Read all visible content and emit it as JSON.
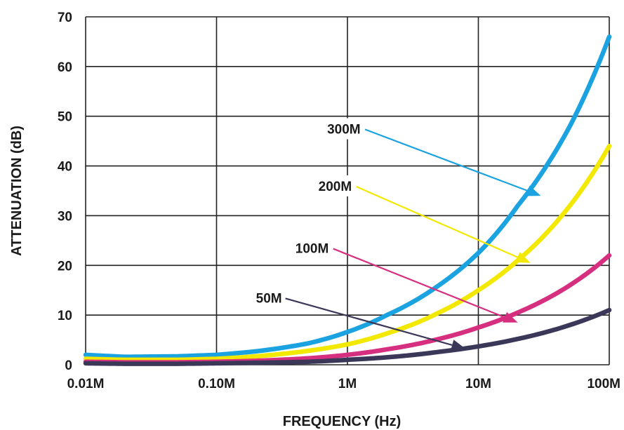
{
  "chart_data": {
    "type": "line",
    "title": "",
    "xlabel": "FREQUENCY (Hz)",
    "ylabel": "ATTENUATION (dB)",
    "xscale": "log",
    "xlim": [
      0.01,
      100
    ],
    "ylim": [
      0,
      70
    ],
    "x_unit": "MHz",
    "grid": true,
    "x_ticks": [
      {
        "value": 0.01,
        "label": "0.01M"
      },
      {
        "value": 0.1,
        "label": "0.10M"
      },
      {
        "value": 1,
        "label": "1M"
      },
      {
        "value": 10,
        "label": "10M"
      },
      {
        "value": 100,
        "label": "100M"
      }
    ],
    "y_ticks": [
      0,
      10,
      20,
      30,
      40,
      50,
      60,
      70
    ],
    "x": [
      0.01,
      0.02,
      0.05,
      0.1,
      0.2,
      0.5,
      1,
      2,
      5,
      10,
      20,
      50,
      100
    ],
    "series": [
      {
        "name": "300M",
        "color": "#1aa3e0",
        "values": [
          2.0,
          1.6,
          1.7,
          2.0,
          2.7,
          4.3,
          6.6,
          10.0,
          16.0,
          22.5,
          32.0,
          48.0,
          66.0
        ]
      },
      {
        "name": "200M",
        "color": "#f2e800",
        "values": [
          1.2,
          1.0,
          1.0,
          1.2,
          1.7,
          2.8,
          4.1,
          6.3,
          10.5,
          15.0,
          21.0,
          32.0,
          44.0
        ]
      },
      {
        "name": "100M",
        "color": "#d62f7f",
        "values": [
          0.6,
          0.5,
          0.5,
          0.6,
          0.8,
          1.3,
          2.0,
          3.1,
          5.2,
          7.5,
          10.5,
          16.0,
          22.0
        ]
      },
      {
        "name": "50M",
        "color": "#3a3758",
        "values": [
          0.3,
          0.2,
          0.2,
          0.3,
          0.4,
          0.6,
          1.0,
          1.5,
          2.6,
          3.7,
          5.2,
          8.0,
          11.0
        ]
      }
    ],
    "annotations": [
      {
        "series": "300M",
        "text": "300M",
        "text_x": 0.7,
        "text_y": 46.5,
        "arrow_x": 30,
        "arrow_y": 34
      },
      {
        "series": "200M",
        "text": "200M",
        "text_x": 0.6,
        "text_y": 35,
        "arrow_x": 25,
        "arrow_y": 20.5
      },
      {
        "series": "100M",
        "text": "100M",
        "text_x": 0.4,
        "text_y": 22.5,
        "arrow_x": 20,
        "arrow_y": 8.5
      },
      {
        "series": "50M",
        "text": "50M",
        "text_x": 0.2,
        "text_y": 12.5,
        "arrow_x": 8,
        "arrow_y": 3.2
      }
    ]
  }
}
